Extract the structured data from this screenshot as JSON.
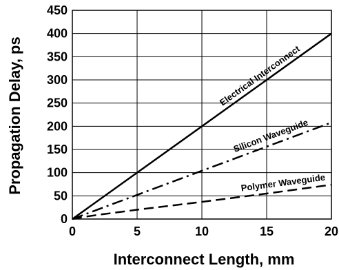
{
  "chart_data": {
    "type": "line",
    "xlabel": "Interconnect Length, mm",
    "ylabel": "Propagation Delay, ps",
    "xlim": [
      0,
      20
    ],
    "ylim": [
      0,
      450
    ],
    "xticks": [
      0,
      5,
      10,
      15,
      20
    ],
    "yticks": [
      0,
      50,
      100,
      150,
      200,
      250,
      300,
      350,
      400,
      450
    ],
    "grid": true,
    "series": [
      {
        "name": "Electrical Interconnect",
        "style": "solid",
        "color": "#000000",
        "x": [
          0,
          20
        ],
        "y": [
          0,
          400
        ]
      },
      {
        "name": "Silicon Waveguide",
        "style": "dash-dot",
        "color": "#000000",
        "x": [
          0,
          20
        ],
        "y": [
          0,
          208
        ]
      },
      {
        "name": "Polymer Waveguide",
        "style": "dash",
        "color": "#000000",
        "x": [
          0,
          1,
          2,
          5,
          10,
          15,
          20
        ],
        "y": [
          0,
          5,
          9,
          20,
          37,
          55,
          74
        ]
      }
    ]
  }
}
